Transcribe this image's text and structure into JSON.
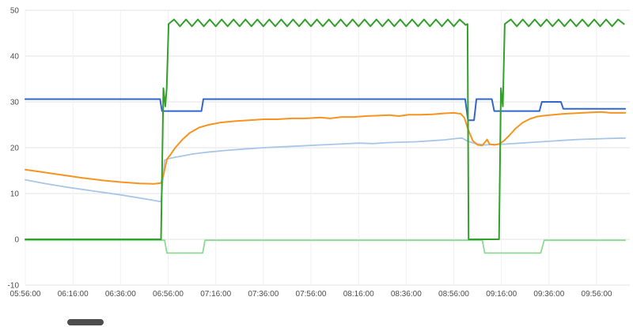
{
  "page": {
    "background": "#ffffff"
  },
  "colors": {
    "grid_h": "#e3e3e3",
    "grid_v": "#f0f0f0",
    "axis_text": "#4d4d4d",
    "scrollbar_thumb": "#4d4d4d"
  },
  "chart_data": {
    "type": "line",
    "title": "",
    "xlabel": "",
    "ylabel": "",
    "legend": "none",
    "grid": true,
    "ylim": [
      -10,
      50
    ],
    "y_ticks": [
      -10,
      0,
      10,
      20,
      30,
      40,
      50
    ],
    "x_tick_interval_min": 20,
    "x_minutes_range": [
      0,
      252
    ],
    "x_ticks": [
      "05:56:00",
      "06:16:00",
      "06:36:00",
      "06:56:00",
      "07:16:00",
      "07:36:00",
      "07:56:00",
      "08:16:00",
      "08:36:00",
      "08:56:00",
      "09:16:00",
      "09:36:00",
      "09:56:00"
    ],
    "series": [
      {
        "name": "light-green",
        "color": "#90d895",
        "width": 1.8,
        "points": [
          [
            0,
            -0.2
          ],
          [
            58.5,
            -0.2
          ],
          [
            59.5,
            -3
          ],
          [
            74.5,
            -3
          ],
          [
            75.5,
            -0.2
          ],
          [
            192,
            -0.2
          ],
          [
            193,
            -3
          ],
          [
            216.5,
            -3
          ],
          [
            218,
            -0.2
          ],
          [
            252,
            -0.2
          ]
        ]
      },
      {
        "name": "light-blue",
        "color": "#a8c6e8",
        "width": 1.8,
        "points": [
          [
            0,
            13
          ],
          [
            8,
            12.2
          ],
          [
            16,
            11.5
          ],
          [
            24,
            10.9
          ],
          [
            32,
            10.3
          ],
          [
            40,
            9.7
          ],
          [
            47,
            9.1
          ],
          [
            53,
            8.6
          ],
          [
            57,
            8.2
          ],
          [
            58.5,
            17.3
          ],
          [
            61,
            17.7
          ],
          [
            65,
            18.1
          ],
          [
            70,
            18.6
          ],
          [
            76,
            19
          ],
          [
            84,
            19.4
          ],
          [
            92,
            19.7
          ],
          [
            100,
            20
          ],
          [
            108,
            20.2
          ],
          [
            116,
            20.4
          ],
          [
            124,
            20.6
          ],
          [
            132,
            20.8
          ],
          [
            140,
            21
          ],
          [
            146,
            20.9
          ],
          [
            152,
            21.1
          ],
          [
            158,
            21.2
          ],
          [
            164,
            21.3
          ],
          [
            170,
            21.5
          ],
          [
            176,
            21.7
          ],
          [
            181,
            22
          ],
          [
            183.5,
            22.1
          ],
          [
            186,
            21.4
          ],
          [
            189,
            20.9
          ],
          [
            193,
            20.6
          ],
          [
            197,
            20.7
          ],
          [
            202,
            20.8
          ],
          [
            208,
            21
          ],
          [
            214,
            21.2
          ],
          [
            220,
            21.4
          ],
          [
            226,
            21.6
          ],
          [
            232,
            21.8
          ],
          [
            238,
            21.9
          ],
          [
            244,
            22
          ],
          [
            252,
            22.1
          ]
        ]
      },
      {
        "name": "orange",
        "color": "#f79420",
        "width": 2,
        "points": [
          [
            0,
            15.2
          ],
          [
            8,
            14.6
          ],
          [
            16,
            14
          ],
          [
            24,
            13.4
          ],
          [
            32,
            12.9
          ],
          [
            40,
            12.5
          ],
          [
            48,
            12.2
          ],
          [
            54,
            12.1
          ],
          [
            57,
            12.3
          ],
          [
            58,
            14
          ],
          [
            59.5,
            17.5
          ],
          [
            61,
            18.5
          ],
          [
            63,
            20
          ],
          [
            66,
            21.8
          ],
          [
            69,
            23.2
          ],
          [
            73,
            24.4
          ],
          [
            77,
            25
          ],
          [
            82,
            25.5
          ],
          [
            88,
            25.8
          ],
          [
            94,
            26
          ],
          [
            100,
            26.2
          ],
          [
            106,
            26.2
          ],
          [
            112,
            26.4
          ],
          [
            118,
            26.4
          ],
          [
            124,
            26.6
          ],
          [
            128,
            26.4
          ],
          [
            133,
            26.7
          ],
          [
            138,
            26.7
          ],
          [
            143,
            26.9
          ],
          [
            148,
            27
          ],
          [
            153,
            27.1
          ],
          [
            157,
            26.9
          ],
          [
            161,
            27.2
          ],
          [
            166,
            27.2
          ],
          [
            171,
            27.3
          ],
          [
            176,
            27.5
          ],
          [
            180,
            27.6
          ],
          [
            183,
            27.4
          ],
          [
            184.5,
            26.5
          ],
          [
            186,
            24
          ],
          [
            188,
            21.5
          ],
          [
            190,
            20.6
          ],
          [
            192,
            20.5
          ],
          [
            194,
            21.8
          ],
          [
            195,
            20.8
          ],
          [
            197,
            20.6
          ],
          [
            199,
            20.8
          ],
          [
            201,
            21.5
          ],
          [
            203,
            22.5
          ],
          [
            206,
            24.2
          ],
          [
            209,
            25.5
          ],
          [
            212,
            26.3
          ],
          [
            215,
            26.8
          ],
          [
            218,
            27
          ],
          [
            222,
            27.2
          ],
          [
            226,
            27.4
          ],
          [
            230,
            27.5
          ],
          [
            234,
            27.6
          ],
          [
            238,
            27.7
          ],
          [
            242,
            27.8
          ],
          [
            246,
            27.6
          ],
          [
            252,
            27.6
          ]
        ]
      },
      {
        "name": "blue",
        "color": "#3366cc",
        "width": 2,
        "points": [
          [
            0,
            30.6
          ],
          [
            56.6,
            30.6
          ],
          [
            57.4,
            28
          ],
          [
            74,
            28
          ],
          [
            74.8,
            30.6
          ],
          [
            184.8,
            30.6
          ],
          [
            186,
            26
          ],
          [
            188.5,
            26
          ],
          [
            189.5,
            30.6
          ],
          [
            196,
            30.6
          ],
          [
            197,
            28
          ],
          [
            216,
            28
          ],
          [
            217,
            30
          ],
          [
            225,
            30
          ],
          [
            226,
            28.5
          ],
          [
            252,
            28.5
          ]
        ]
      },
      {
        "name": "green",
        "color": "#33a02c",
        "width": 2,
        "points": [
          [
            0,
            0
          ],
          [
            57,
            0
          ],
          [
            58,
            33
          ],
          [
            58.8,
            29
          ],
          [
            59.4,
            33
          ],
          [
            60.2,
            47
          ],
          [
            62.5,
            48
          ],
          [
            65,
            46.5
          ],
          [
            67.5,
            48
          ],
          [
            70,
            46.5
          ],
          [
            72.5,
            48
          ],
          [
            75,
            46.5
          ],
          [
            77.5,
            48
          ],
          [
            80,
            46.5
          ],
          [
            82.5,
            48
          ],
          [
            85,
            46.5
          ],
          [
            87.5,
            48
          ],
          [
            90,
            46.5
          ],
          [
            92.5,
            48
          ],
          [
            95,
            46.5
          ],
          [
            97.5,
            48
          ],
          [
            100,
            46.5
          ],
          [
            102.5,
            48
          ],
          [
            105,
            46.5
          ],
          [
            107.5,
            48
          ],
          [
            110,
            46.5
          ],
          [
            112.5,
            48
          ],
          [
            115,
            46.5
          ],
          [
            117.5,
            48
          ],
          [
            120,
            46.5
          ],
          [
            122.5,
            48
          ],
          [
            125,
            46.5
          ],
          [
            127.5,
            48
          ],
          [
            130,
            46.5
          ],
          [
            132.5,
            48
          ],
          [
            135,
            46.5
          ],
          [
            137.5,
            48
          ],
          [
            140,
            46.5
          ],
          [
            142.5,
            48
          ],
          [
            145,
            46.5
          ],
          [
            147.5,
            48
          ],
          [
            150,
            46.5
          ],
          [
            152.5,
            48
          ],
          [
            155,
            46.5
          ],
          [
            157.5,
            48
          ],
          [
            160,
            46.5
          ],
          [
            162.5,
            48
          ],
          [
            165,
            46.5
          ],
          [
            167.5,
            48
          ],
          [
            170,
            46.5
          ],
          [
            172.5,
            48
          ],
          [
            175,
            46.5
          ],
          [
            177.5,
            48
          ],
          [
            180,
            46.5
          ],
          [
            182.5,
            48
          ],
          [
            185,
            46.8
          ],
          [
            185.8,
            47
          ],
          [
            186.2,
            0
          ],
          [
            199,
            0
          ],
          [
            199.8,
            33
          ],
          [
            200.6,
            29
          ],
          [
            201.4,
            47
          ],
          [
            204,
            48
          ],
          [
            206.5,
            46.5
          ],
          [
            209,
            48
          ],
          [
            211.5,
            46.5
          ],
          [
            214,
            48
          ],
          [
            216.5,
            46.5
          ],
          [
            219,
            48
          ],
          [
            221.5,
            46.5
          ],
          [
            224,
            48
          ],
          [
            226.5,
            46.5
          ],
          [
            229,
            48
          ],
          [
            231.5,
            46.5
          ],
          [
            234,
            48
          ],
          [
            236.5,
            46.5
          ],
          [
            239,
            48
          ],
          [
            241.5,
            46.5
          ],
          [
            244,
            48
          ],
          [
            246.5,
            46.5
          ],
          [
            249,
            48
          ],
          [
            251.5,
            47
          ]
        ]
      }
    ]
  }
}
